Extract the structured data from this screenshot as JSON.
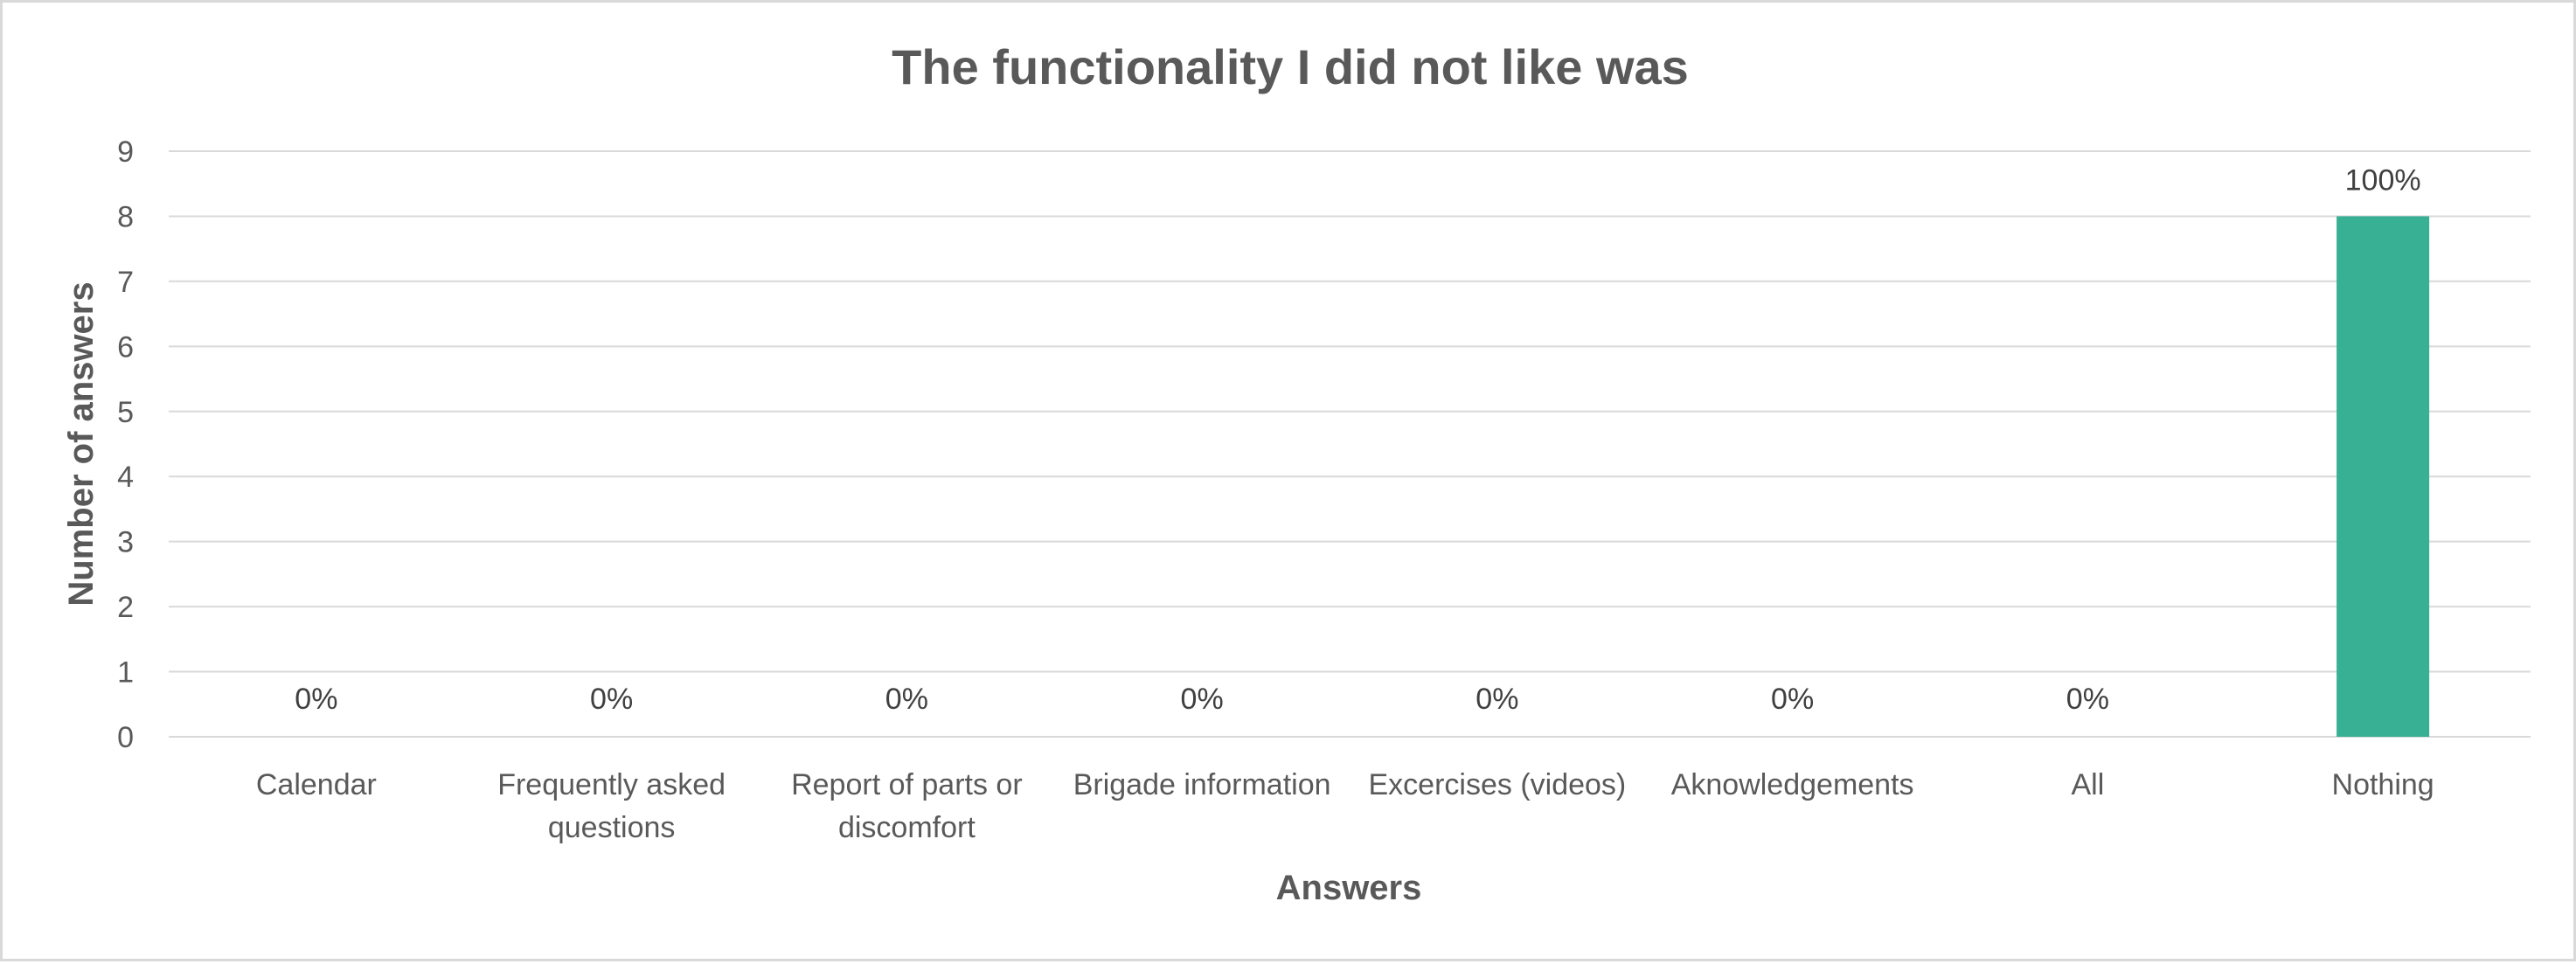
{
  "chart_data": {
    "type": "bar",
    "title": "The functionality I did not like was",
    "xlabel": "Answers",
    "ylabel": "Number of answers",
    "categories": [
      [
        "Calendar"
      ],
      [
        "Frequently asked",
        "questions"
      ],
      [
        "Report of parts or",
        "discomfort"
      ],
      [
        "Brigade information"
      ],
      [
        "Excercises (videos)"
      ],
      [
        "Aknowledgements"
      ],
      [
        "All"
      ],
      [
        "Nothing"
      ]
    ],
    "values": [
      0,
      0,
      0,
      0,
      0,
      0,
      0,
      8
    ],
    "data_labels": [
      "0%",
      "0%",
      "0%",
      "0%",
      "0%",
      "0%",
      "0%",
      "100%"
    ],
    "ylim": [
      0,
      9
    ],
    "yticks": [
      "0",
      "1",
      "2",
      "3",
      "4",
      "5",
      "6",
      "7",
      "8",
      "9"
    ],
    "bar_color": "#37b093",
    "grid": true,
    "legend": "none"
  }
}
